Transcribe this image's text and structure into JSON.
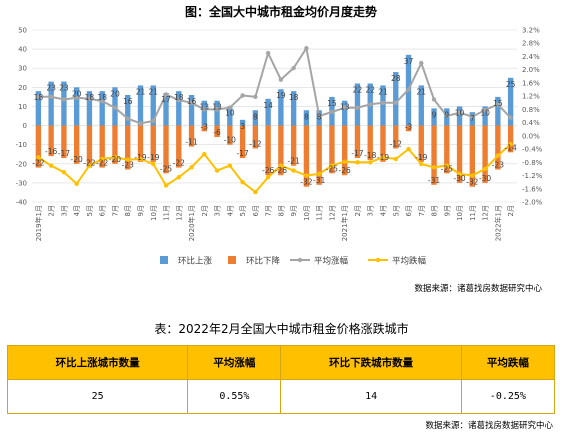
{
  "chart_data": {
    "type": "bar+line",
    "title": "图：全国大中城市租金均价月度走势",
    "left_axis": {
      "min": -40,
      "max": 50,
      "step": 10,
      "ticks": [
        "50",
        "40",
        "30",
        "20",
        "10",
        "0",
        "-10",
        "-20",
        "-30",
        "-40"
      ]
    },
    "right_axis": {
      "min": -2.0,
      "max": 3.2,
      "step": 0.4,
      "ticks": [
        "3.2%",
        "2.8%",
        "2.4%",
        "2.0%",
        "1.6%",
        "1.2%",
        "0.8%",
        "0.4%",
        "0.0%",
        "-0.4%",
        "-0.8%",
        "-1.2%",
        "-1.6%",
        "-2.0%"
      ]
    },
    "year_labels": [
      "2019年",
      "2020年",
      "2021年",
      "2022年"
    ],
    "month_labels": [
      "1月",
      "2月",
      "3月",
      "4月",
      "5月",
      "6月",
      "7月",
      "8月",
      "9月",
      "10月",
      "11月",
      "12月",
      "1月",
      "2月",
      "3月",
      "4月",
      "5月",
      "6月",
      "7月",
      "8月",
      "9月",
      "10月",
      "11月",
      "12月",
      "1月",
      "2月",
      "3月",
      "4月",
      "5月",
      "6月",
      "7月",
      "8月",
      "9月",
      "10月",
      "11月",
      "12月",
      "1月",
      "2月"
    ],
    "up_labels": [
      "18",
      "23",
      "23",
      "20",
      "18",
      "18",
      "20",
      "16",
      "21",
      "21",
      "17",
      "18",
      "16",
      "13",
      "13",
      "10",
      "3",
      "8",
      "14",
      "19",
      "18",
      "8",
      "8",
      "15",
      "13",
      "22",
      "22",
      "21",
      "28",
      "37",
      "21",
      "9",
      "9",
      "10",
      "7",
      "10",
      "15",
      "25"
    ],
    "down_labels": [
      "-22",
      "-16",
      "-17",
      "-20",
      "-22",
      "-22",
      "-20",
      "-23",
      "-19",
      "-19",
      "-25",
      "-22",
      "-11",
      "-3",
      "-6",
      "-10",
      "-17",
      "-12",
      "-26",
      "-26",
      "-21",
      "-32",
      "-31",
      "-25",
      "-26",
      "-17",
      "-18",
      "-19",
      "-12",
      "-3",
      "-19",
      "-31",
      "-25",
      "-30",
      "-32",
      "-30",
      "-23",
      "-14"
    ],
    "series": [
      {
        "name": "环比上涨",
        "color": "#5b9bd5",
        "values": [
          18,
          23,
          23,
          20,
          18,
          18,
          20,
          16,
          21,
          21,
          17,
          18,
          16,
          13,
          13,
          10,
          3,
          8,
          14,
          19,
          18,
          8,
          8,
          15,
          13,
          22,
          22,
          21,
          28,
          37,
          21,
          9,
          9,
          10,
          7,
          10,
          15,
          25
        ]
      },
      {
        "name": "环比下降",
        "color": "#ed7d31",
        "values": [
          -22,
          -16,
          -17,
          -20,
          -22,
          -22,
          -20,
          -23,
          -19,
          -19,
          -25,
          -22,
          -11,
          -3,
          -6,
          -10,
          -17,
          -12,
          -26,
          -26,
          -21,
          -32,
          -31,
          -25,
          -26,
          -17,
          -18,
          -19,
          -12,
          -3,
          -19,
          -31,
          -25,
          -30,
          -32,
          -30,
          -23,
          -14
        ]
      },
      {
        "name": "平均涨幅",
        "color": "#a5a5a5",
        "values": [
          1.18,
          1.18,
          1.1,
          1.15,
          1.12,
          1.05,
          0.85,
          0.52,
          0.38,
          0.45,
          1.25,
          1.08,
          1.0,
          0.8,
          0.8,
          0.85,
          1.22,
          1.18,
          2.5,
          1.7,
          2.05,
          2.65,
          0.6,
          0.72,
          0.85,
          0.85,
          0.95,
          1.0,
          1.0,
          1.4,
          2.2,
          1.1,
          0.6,
          0.7,
          0.58,
          0.78,
          0.95,
          0.55
        ]
      },
      {
        "name": "平均跌幅",
        "color": "#ffc000",
        "values": [
          -0.65,
          -0.9,
          -1.1,
          -1.45,
          -0.9,
          -0.7,
          -0.65,
          -0.72,
          -0.7,
          -0.85,
          -1.5,
          -1.25,
          -0.95,
          -0.55,
          -1.05,
          -0.9,
          -1.4,
          -1.7,
          -1.25,
          -0.9,
          -1.05,
          -1.2,
          -1.15,
          -0.9,
          -0.78,
          -0.8,
          -0.8,
          -0.65,
          -0.7,
          -0.4,
          -0.85,
          -0.95,
          -0.9,
          -1.15,
          -1.2,
          -1.0,
          -0.6,
          -0.25
        ]
      }
    ],
    "legend_position": "bottom",
    "grid": true
  },
  "chart_source": "数据来源：诸葛找房数据研究中心",
  "table": {
    "title": "表：2022年2月全国大中城市租金价格涨跌城市",
    "headers": [
      "环比上涨城市数量",
      "平均涨幅",
      "环比下跌城市数量",
      "平均跌幅"
    ],
    "values": [
      "25",
      "0.55%",
      "14",
      "-0.25%"
    ],
    "source": "数据来源：诸葛找房数据研究中心"
  }
}
